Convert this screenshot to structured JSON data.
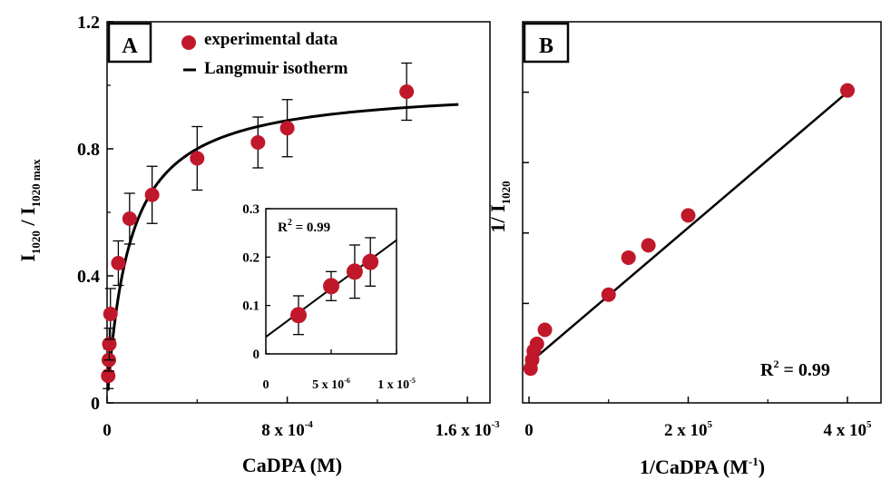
{
  "colors": {
    "marker": "#c0182a",
    "line": "#000000",
    "axis": "#000000",
    "background": "#ffffff"
  },
  "chart_data": [
    {
      "panel": "A",
      "type": "scatter",
      "ylabel_main": "I",
      "ylabel_sub1": "1020",
      "ylabel_mid": " / I",
      "ylabel_sub2": "1020 max",
      "xlabel": "CaDPA (M)",
      "xlim": [
        0,
        0.0017
      ],
      "ylim": [
        0,
        1.2
      ],
      "xticks": [
        {
          "value": 0,
          "label": "0",
          "exp": ""
        },
        {
          "value": 0.0008,
          "label": "8 x 10",
          "exp": "-4"
        },
        {
          "value": 0.0016,
          "label": "1.6 x 10",
          "exp": "-3"
        }
      ],
      "yticks": [
        {
          "value": 0,
          "label": "0"
        },
        {
          "value": 0.4,
          "label": "0.4"
        },
        {
          "value": 0.8,
          "label": "0.8"
        },
        {
          "value": 1.2,
          "label": "1.2"
        }
      ],
      "legend": {
        "placement": "top-center",
        "marker_label": "experimental data",
        "line_label": "Langmuir isotherm"
      },
      "series": [
        {
          "name": "experimental data",
          "kind": "points",
          "x": [
            5e-06,
            8e-06,
            1e-05,
            1.5e-05,
            5e-05,
            0.0001,
            0.0002,
            0.0004,
            0.00067,
            0.0008,
            0.00133
          ],
          "y": [
            0.085,
            0.135,
            0.185,
            0.28,
            0.44,
            0.58,
            0.655,
            0.77,
            0.82,
            0.865,
            0.98
          ],
          "err": [
            0.04,
            0.035,
            0.05,
            0.08,
            0.07,
            0.08,
            0.09,
            0.1,
            0.08,
            0.09,
            0.09
          ]
        },
        {
          "name": "Langmuir isotherm",
          "kind": "curve",
          "model": "y = ymax*K*x/(1+K*x)",
          "ymax": 1.0,
          "K": 10000,
          "x_start": 4e-06,
          "x_end": 0.00156
        }
      ],
      "inset": {
        "type": "scatter",
        "annotation": "R",
        "annotation_exp": "2",
        "annotation_rest": " = 0.99",
        "xlim": [
          0,
          1e-05
        ],
        "ylim": [
          0,
          0.3
        ],
        "xticks": [
          {
            "value": 0,
            "label": "0",
            "exp": ""
          },
          {
            "value": 5e-06,
            "label": "5 x 10",
            "exp": "-6"
          },
          {
            "value": 1e-05,
            "label": "1 x 10",
            "exp": "-5"
          }
        ],
        "yticks": [
          {
            "value": 0,
            "label": "0"
          },
          {
            "value": 0.1,
            "label": "0.1"
          },
          {
            "value": 0.2,
            "label": "0.2"
          },
          {
            "value": 0.3,
            "label": "0.3"
          }
        ],
        "points": {
          "x": [
            2.5e-06,
            5e-06,
            6.8e-06,
            8e-06
          ],
          "y": [
            0.08,
            0.14,
            0.17,
            0.19
          ],
          "err": [
            0.04,
            0.03,
            0.055,
            0.05
          ]
        },
        "fit": {
          "x": [
            0,
            1e-05
          ],
          "y": [
            0.035,
            0.235
          ]
        }
      }
    },
    {
      "panel": "B",
      "type": "scatter",
      "ylabel_main": "1/ I",
      "ylabel_sub": "1020",
      "xlabel_main": "1/CaDPA (M",
      "xlabel_exp": "-1",
      "xlabel_end": ")",
      "xlim": [
        0,
        400000
      ],
      "ylim": [
        0,
        1.0
      ],
      "xticks": [
        {
          "value": 0,
          "label": "0",
          "exp": ""
        },
        {
          "value": 200000,
          "label": "2 x 10",
          "exp": "5"
        },
        {
          "value": 400000,
          "label": "4 x 10",
          "exp": "5"
        }
      ],
      "yticks_unlabeled": [
        0.2,
        0.4,
        0.6,
        0.8
      ],
      "annotation": "R",
      "annotation_exp": "2",
      "annotation_rest": " = 0.99",
      "points": {
        "x": [
          2000,
          4000,
          6000,
          10000,
          20000,
          100000,
          125000,
          150000,
          200000,
          400000
        ],
        "y": [
          0.015,
          0.04,
          0.065,
          0.085,
          0.125,
          0.225,
          0.33,
          0.365,
          0.45,
          0.805
        ]
      },
      "fit": {
        "x": [
          0,
          400000
        ],
        "y": [
          0.03,
          0.8
        ]
      }
    }
  ]
}
